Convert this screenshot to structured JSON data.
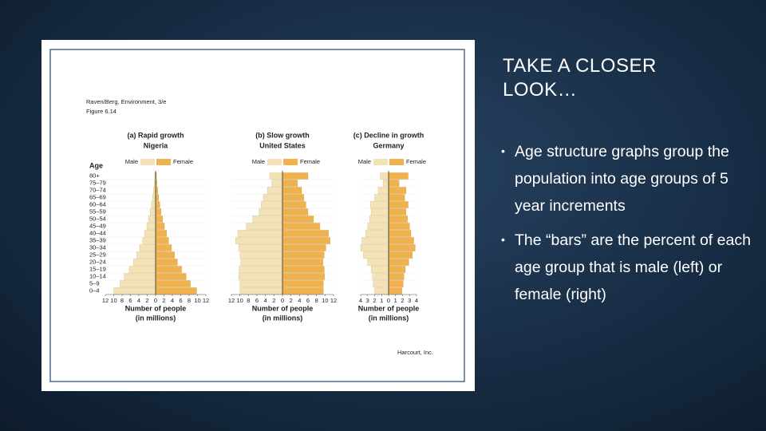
{
  "slide": {
    "title": "TAKE A CLOSER LOOK…",
    "bullets": [
      "Age structure graphs group the population into age groups of 5 year increments",
      "The “bars” are the percent of each age group that is male (left) or female (right)"
    ]
  },
  "figure": {
    "source": "Raven/Berg, Environment, 3/e",
    "label": "Figure 6.14",
    "credit": "Harcourt, Inc."
  },
  "chart_data": [
    {
      "type": "pyramid",
      "title": "(a) Rapid growth",
      "subtitle": "Nigeria",
      "ylabel": "Age",
      "categories": [
        "80+",
        "75–79",
        "70–74",
        "65–69",
        "60–64",
        "55–59",
        "50–54",
        "45–49",
        "40–44",
        "35–39",
        "30–34",
        "25–29",
        "20–24",
        "15–19",
        "10–14",
        "5–9",
        "0–4"
      ],
      "series": [
        {
          "name": "Male",
          "color": "#f3e2b6",
          "values": [
            0.2,
            0.3,
            0.5,
            0.7,
            1,
            1.3,
            1.7,
            2.1,
            2.6,
            3.1,
            3.8,
            4.5,
            5.3,
            6.3,
            7.5,
            8.5,
            10
          ]
        },
        {
          "name": "Female",
          "color": "#f0b24c",
          "values": [
            0.2,
            0.3,
            0.5,
            0.7,
            1,
            1.3,
            1.7,
            2.1,
            2.6,
            3.1,
            3.8,
            4.5,
            5.2,
            6.2,
            7.3,
            8.3,
            9.8
          ]
        }
      ],
      "xlim": [
        -12,
        12
      ],
      "xticks": [
        {
          "value": -12,
          "label": "12"
        },
        {
          "value": -10,
          "label": "10"
        },
        {
          "value": -8,
          "label": "8"
        },
        {
          "value": -6,
          "label": "6"
        },
        {
          "value": -4,
          "label": "4"
        },
        {
          "value": -2,
          "label": "2"
        },
        0,
        2,
        4,
        6,
        8,
        10,
        12
      ],
      "xlabel": "Number of people",
      "xlabel_note": "(in millions)"
    },
    {
      "type": "pyramid",
      "title": "(b) Slow growth",
      "subtitle": "United States",
      "series": [
        {
          "name": "Male",
          "color": "#f3e2b6",
          "values": [
            3,
            2.5,
            3.5,
            4.5,
            5,
            5.5,
            7,
            8.5,
            10.5,
            11,
            10.3,
            10,
            9.8,
            10.2,
            10.3,
            10,
            10
          ]
        },
        {
          "name": "Female",
          "color": "#f0b24c",
          "values": [
            6,
            3.5,
            4.5,
            5,
            5.5,
            6,
            7.3,
            8.8,
            10.8,
            11.2,
            10.2,
            9.8,
            9.5,
            9.8,
            9.9,
            9.6,
            9.6
          ]
        }
      ],
      "xlim": [
        -12,
        12
      ],
      "xticks": [
        {
          "value": -12,
          "label": "12"
        },
        {
          "value": -10,
          "label": "10"
        },
        {
          "value": -8,
          "label": "8"
        },
        {
          "value": -6,
          "label": "6"
        },
        {
          "value": -4,
          "label": "4"
        },
        {
          "value": -2,
          "label": "2"
        },
        0,
        2,
        4,
        6,
        8,
        10,
        12
      ],
      "xlabel": "Number of people",
      "xlabel_note": "(in millions)"
    },
    {
      "type": "pyramid",
      "title": "(c) Decline in growth",
      "subtitle": "Germany",
      "series": [
        {
          "name": "Male",
          "color": "#f3e2b6",
          "values": [
            1.2,
            0.8,
            1.5,
            2,
            2.6,
            2.5,
            2.7,
            3,
            3.3,
            3.8,
            4,
            3.6,
            3,
            2.5,
            2.3,
            2.2,
            2
          ]
        },
        {
          "name": "Female",
          "color": "#f0b24c",
          "values": [
            2.8,
            1.5,
            2.5,
            2.3,
            2.8,
            2.5,
            2.7,
            3,
            3.2,
            3.6,
            3.8,
            3.4,
            2.9,
            2.4,
            2.2,
            2.1,
            1.9
          ]
        }
      ],
      "xlim": [
        -4,
        4
      ],
      "xticks": [
        {
          "value": -4,
          "label": "4"
        },
        {
          "value": -3,
          "label": "3"
        },
        {
          "value": -2,
          "label": "2"
        },
        {
          "value": -1,
          "label": "1"
        },
        0,
        1,
        2,
        3,
        4
      ],
      "xlabel": "Number of people",
      "xlabel_note": "(in millions)"
    }
  ]
}
